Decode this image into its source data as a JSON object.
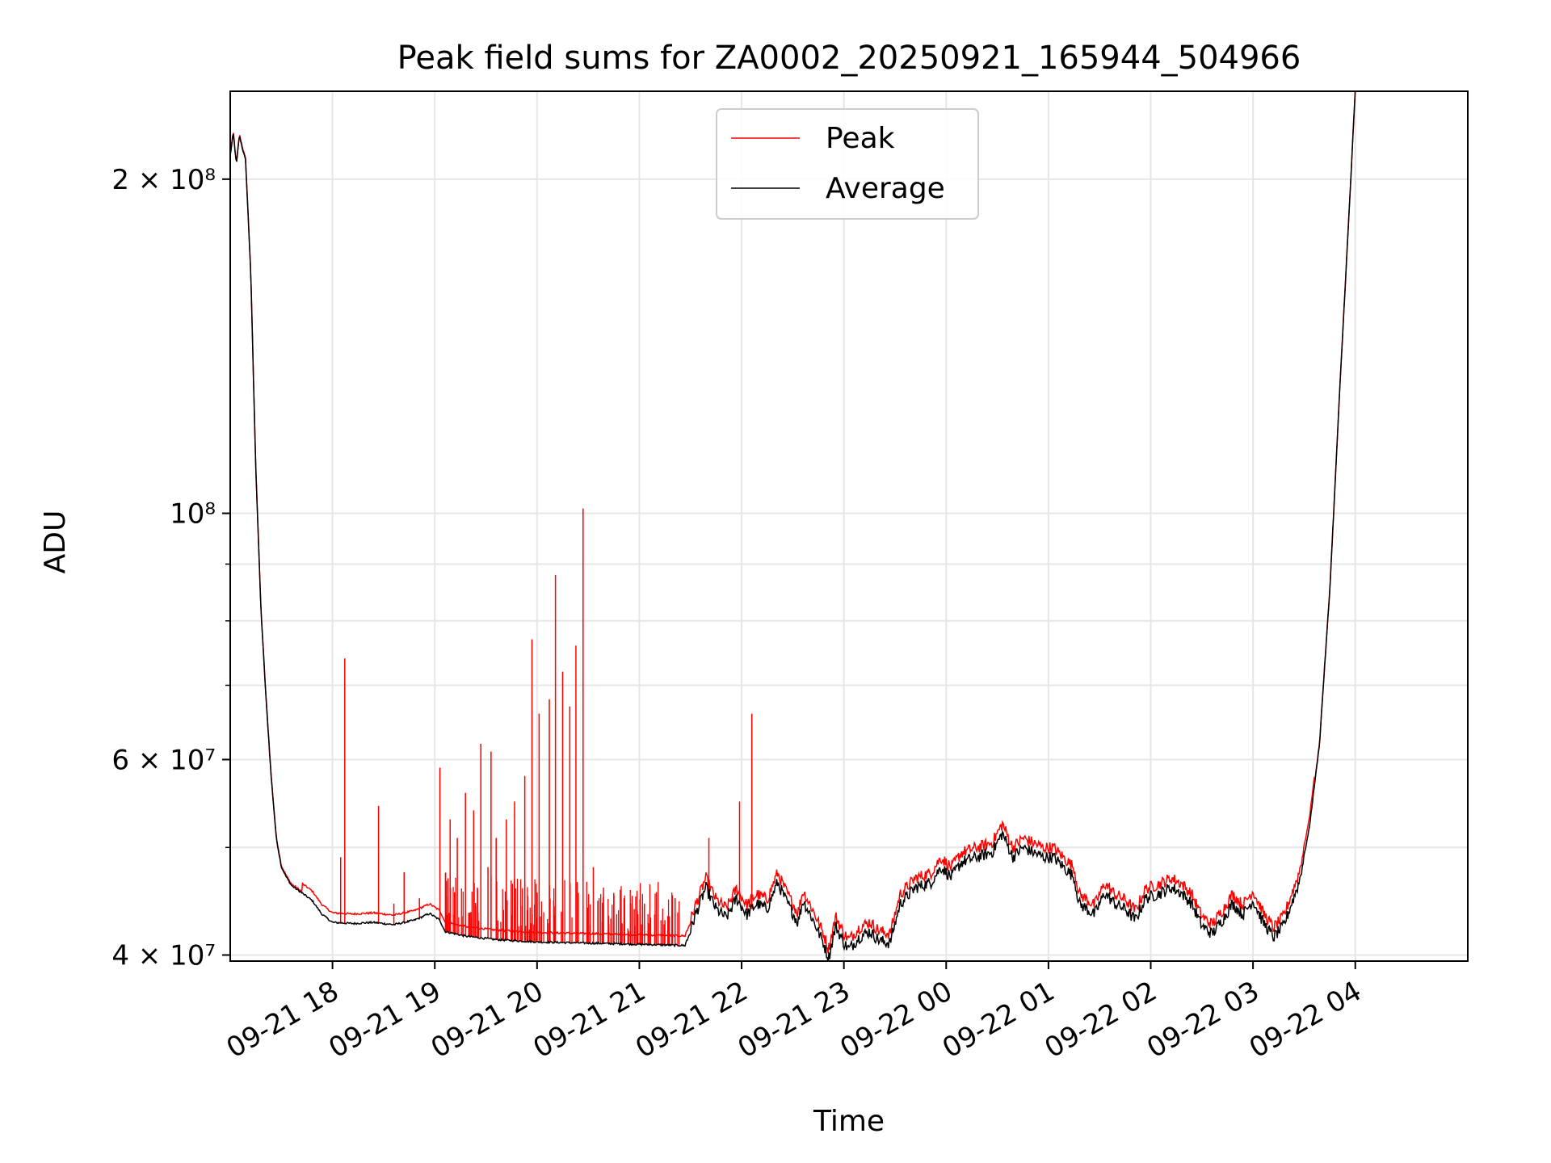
{
  "chart_data": {
    "type": "line",
    "title": "Peak field sums for ZA0002_20250921_165944_504966",
    "xlabel": "Time",
    "ylabel": "ADU",
    "yscale": "log",
    "ylim": [
      39500000,
      240000000
    ],
    "xlim_hours": [
      -1.0,
      11.1
    ],
    "grid": true,
    "legend": {
      "placement": "upper center",
      "entries": [
        "Peak",
        "Average"
      ]
    },
    "colors": {
      "peak": "#ff0000",
      "average": "#000000",
      "grid": "#e6e6e6"
    },
    "x_ticks": [
      {
        "t": 0,
        "label": "09-21 18"
      },
      {
        "t": 1,
        "label": "09-21 19"
      },
      {
        "t": 2,
        "label": "09-21 20"
      },
      {
        "t": 3,
        "label": "09-21 21"
      },
      {
        "t": 4,
        "label": "09-21 22"
      },
      {
        "t": 5,
        "label": "09-21 23"
      },
      {
        "t": 6,
        "label": "09-22 00"
      },
      {
        "t": 7,
        "label": "09-22 01"
      },
      {
        "t": 8,
        "label": "09-22 02"
      },
      {
        "t": 9,
        "label": "09-22 03"
      },
      {
        "t": 10,
        "label": "09-22 04"
      }
    ],
    "y_ticks_major": [
      {
        "v": 40000000,
        "label": "4 × 10⁷"
      },
      {
        "v": 60000000,
        "label": "6 × 10⁷"
      },
      {
        "v": 100000000,
        "label": "10⁸"
      },
      {
        "v": 200000000,
        "label": "2 × 10⁸"
      }
    ],
    "y_ticks_minor": [
      50000000,
      70000000,
      80000000,
      90000000
    ],
    "series": [
      {
        "name": "Average",
        "color": "#000000",
        "points": [
          [
            -1.0,
            210000000
          ],
          [
            -0.97,
            220000000
          ],
          [
            -0.94,
            206000000
          ],
          [
            -0.91,
            219000000
          ],
          [
            -0.88,
            213000000
          ],
          [
            -0.85,
            208000000
          ],
          [
            -0.8,
            165000000
          ],
          [
            -0.75,
            110000000
          ],
          [
            -0.7,
            82000000
          ],
          [
            -0.65,
            68000000
          ],
          [
            -0.6,
            58000000
          ],
          [
            -0.55,
            51000000
          ],
          [
            -0.5,
            48000000
          ],
          [
            -0.45,
            47000000
          ],
          [
            -0.4,
            46200000
          ],
          [
            -0.3,
            45500000
          ],
          [
            -0.2,
            44800000
          ],
          [
            -0.1,
            43500000
          ],
          [
            0.0,
            42800000
          ],
          [
            0.2,
            42700000
          ],
          [
            0.4,
            42800000
          ],
          [
            0.6,
            42600000
          ],
          [
            0.8,
            43000000
          ],
          [
            0.95,
            43600000
          ],
          [
            1.05,
            43000000
          ],
          [
            1.1,
            42000000
          ],
          [
            1.3,
            41600000
          ],
          [
            1.6,
            41300000
          ],
          [
            2.0,
            41100000
          ],
          [
            2.5,
            41000000
          ],
          [
            3.0,
            40900000
          ],
          [
            3.45,
            40800000
          ],
          [
            3.55,
            43500000
          ],
          [
            3.65,
            46000000
          ],
          [
            3.75,
            44000000
          ],
          [
            3.85,
            43200000
          ],
          [
            3.95,
            45000000
          ],
          [
            4.05,
            43500000
          ],
          [
            4.15,
            44500000
          ],
          [
            4.25,
            44000000
          ],
          [
            4.35,
            46500000
          ],
          [
            4.45,
            44500000
          ],
          [
            4.55,
            42800000
          ],
          [
            4.6,
            44800000
          ],
          [
            4.7,
            43000000
          ],
          [
            4.8,
            41000000
          ],
          [
            4.85,
            39700000
          ],
          [
            4.92,
            42500000
          ],
          [
            5.0,
            41000000
          ],
          [
            5.05,
            40500000
          ],
          [
            5.15,
            41500000
          ],
          [
            5.25,
            42000000
          ],
          [
            5.35,
            41200000
          ],
          [
            5.45,
            41000000
          ],
          [
            5.55,
            44500000
          ],
          [
            5.7,
            46000000
          ],
          [
            5.85,
            46500000
          ],
          [
            5.95,
            48000000
          ],
          [
            6.05,
            47000000
          ],
          [
            6.15,
            48500000
          ],
          [
            6.3,
            49000000
          ],
          [
            6.45,
            49500000
          ],
          [
            6.55,
            51500000
          ],
          [
            6.65,
            49000000
          ],
          [
            6.75,
            50000000
          ],
          [
            6.85,
            49500000
          ],
          [
            6.95,
            49000000
          ],
          [
            7.05,
            49000000
          ],
          [
            7.15,
            48000000
          ],
          [
            7.25,
            47000000
          ],
          [
            7.3,
            44500000
          ],
          [
            7.45,
            43500000
          ],
          [
            7.55,
            45500000
          ],
          [
            7.65,
            44500000
          ],
          [
            7.75,
            44000000
          ],
          [
            7.85,
            43000000
          ],
          [
            7.95,
            45000000
          ],
          [
            8.1,
            45500000
          ],
          [
            8.2,
            46000000
          ],
          [
            8.3,
            45500000
          ],
          [
            8.4,
            44500000
          ],
          [
            8.5,
            42500000
          ],
          [
            8.6,
            41800000
          ],
          [
            8.7,
            43000000
          ],
          [
            8.8,
            44500000
          ],
          [
            8.9,
            43500000
          ],
          [
            9.0,
            44800000
          ],
          [
            9.1,
            42800000
          ],
          [
            9.2,
            41500000
          ],
          [
            9.3,
            42500000
          ],
          [
            9.45,
            46500000
          ],
          [
            9.55,
            52000000
          ],
          [
            9.65,
            62000000
          ],
          [
            9.75,
            85000000
          ],
          [
            9.85,
            130000000
          ],
          [
            9.95,
            195000000
          ],
          [
            10.0,
            240000000
          ]
        ]
      },
      {
        "name": "Peak",
        "color": "#ff0000",
        "offset_factor": 1.02,
        "spikes": [
          [
            0.12,
            74000000
          ],
          [
            0.08,
            49000000
          ],
          [
            0.45,
            54500000
          ],
          [
            0.6,
            44500000
          ],
          [
            0.7,
            47500000
          ],
          [
            0.85,
            45000000
          ],
          [
            1.05,
            59000000
          ],
          [
            1.15,
            53000000
          ],
          [
            1.22,
            51000000
          ],
          [
            1.3,
            56000000
          ],
          [
            1.38,
            54000000
          ],
          [
            1.45,
            62000000
          ],
          [
            1.52,
            48000000
          ],
          [
            1.55,
            61000000
          ],
          [
            1.6,
            51000000
          ],
          [
            1.7,
            53000000
          ],
          [
            1.78,
            55000000
          ],
          [
            1.88,
            58000000
          ],
          [
            1.95,
            77000000
          ],
          [
            2.02,
            66000000
          ],
          [
            2.12,
            68000000
          ],
          [
            2.18,
            88000000
          ],
          [
            2.25,
            72000000
          ],
          [
            2.32,
            67000000
          ],
          [
            2.38,
            76000000
          ],
          [
            2.45,
            101000000
          ],
          [
            2.55,
            48000000
          ],
          [
            2.65,
            46000000
          ],
          [
            2.75,
            45500000
          ],
          [
            2.85,
            45000000
          ],
          [
            2.95,
            44000000
          ],
          [
            3.05,
            44500000
          ],
          [
            3.15,
            43500000
          ],
          [
            3.25,
            43000000
          ],
          [
            3.35,
            45000000
          ],
          [
            3.68,
            51000000
          ],
          [
            3.98,
            55000000
          ],
          [
            4.1,
            66000000
          ]
        ]
      }
    ]
  }
}
